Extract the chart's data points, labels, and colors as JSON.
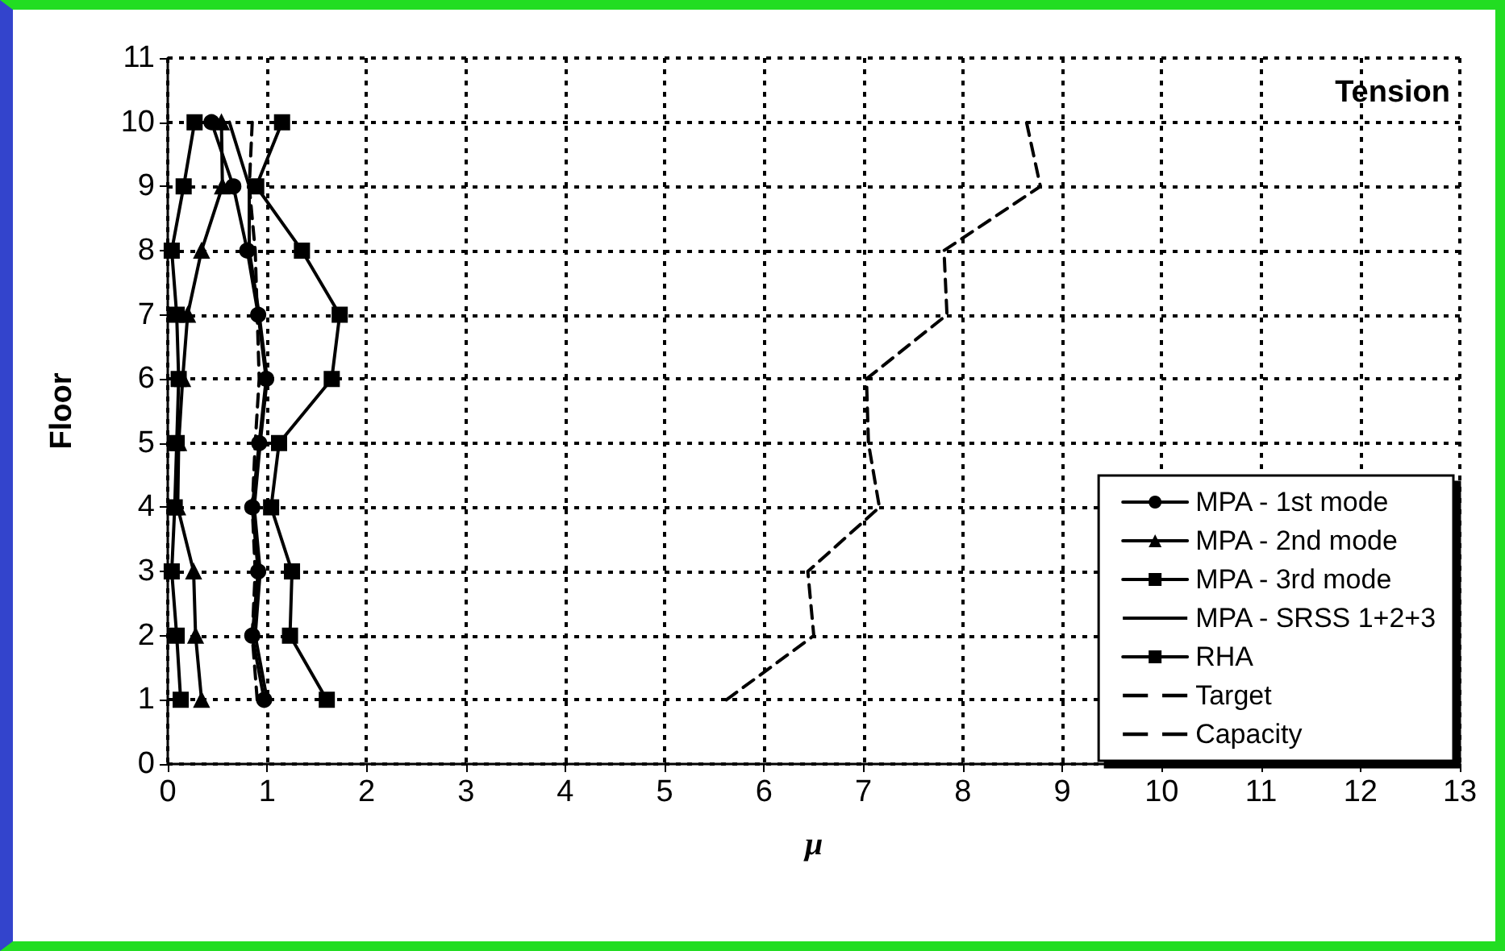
{
  "chart_data": {
    "type": "line",
    "xlabel": "μ",
    "ylabel": "Floor",
    "annotations": [
      "Tension"
    ],
    "xlim": [
      0,
      13
    ],
    "xticks": [
      0,
      1,
      2,
      3,
      4,
      5,
      6,
      7,
      8,
      9,
      10,
      11,
      12,
      13
    ],
    "ylim": [
      0,
      11
    ],
    "yticks": [
      0,
      1,
      2,
      3,
      4,
      5,
      6,
      7,
      8,
      9,
      10,
      11
    ],
    "grid": true,
    "legend": "bottom right",
    "series": [
      {
        "name": "MPA - 1st mode",
        "color": "#000000",
        "marker": "circle",
        "line_style": "solid",
        "x": [
          0.97,
          0.85,
          0.91,
          0.85,
          0.92,
          0.99,
          0.91,
          0.8,
          0.66,
          0.44
        ],
        "values": [
          1,
          2,
          3,
          4,
          5,
          6,
          7,
          8,
          9,
          10
        ]
      },
      {
        "name": "MPA - 2nd mode",
        "color": "#000000",
        "marker": "triangle",
        "line_style": "solid",
        "x": [
          0.34,
          0.28,
          0.26,
          0.1,
          0.11,
          0.15,
          0.2,
          0.34,
          0.55,
          0.54
        ],
        "values": [
          1,
          2,
          3,
          4,
          5,
          6,
          7,
          8,
          9,
          10
        ]
      },
      {
        "name": "MPA - 3rd mode",
        "color": "#000000",
        "marker": "square",
        "line_style": "solid",
        "x": [
          0.13,
          0.09,
          0.04,
          0.07,
          0.09,
          0.11,
          0.09,
          0.04,
          0.16,
          0.27
        ],
        "values": [
          1,
          2,
          3,
          4,
          5,
          6,
          7,
          8,
          9,
          10
        ]
      },
      {
        "name": "MPA - SRSS 1+2+3",
        "color": "#000000",
        "marker": "none",
        "line_style": "solid",
        "x": [
          1.0,
          0.88,
          0.93,
          0.87,
          0.93,
          1.0,
          0.92,
          0.82,
          0.82,
          0.62
        ],
        "values": [
          1,
          2,
          3,
          4,
          5,
          6,
          7,
          8,
          9,
          10
        ]
      },
      {
        "name": "RHA",
        "color": "#000000",
        "marker": "square",
        "line_style": "solid",
        "x": [
          1.6,
          1.23,
          1.25,
          1.04,
          1.12,
          1.65,
          1.73,
          1.35,
          0.89,
          1.15
        ],
        "values": [
          1,
          2,
          3,
          4,
          5,
          6,
          7,
          8,
          9,
          10
        ]
      },
      {
        "name": "Target",
        "color": "#000000",
        "marker": "none",
        "line_style": "dashed",
        "x": [
          0.9,
          0.85,
          0.88,
          0.85,
          0.88,
          0.92,
          0.9,
          0.88,
          0.82,
          0.85
        ],
        "values": [
          1,
          2,
          3,
          4,
          5,
          6,
          7,
          8,
          9,
          10
        ]
      },
      {
        "name": "Capacity",
        "color": "#000000",
        "marker": "none",
        "line_style": "dashed",
        "x": [
          5.62,
          6.5,
          6.44,
          7.16,
          7.05,
          7.03,
          7.84,
          7.81,
          8.78,
          8.64
        ],
        "values": [
          1,
          2,
          3,
          4,
          5,
          6,
          7,
          8,
          9,
          10
        ]
      }
    ]
  }
}
